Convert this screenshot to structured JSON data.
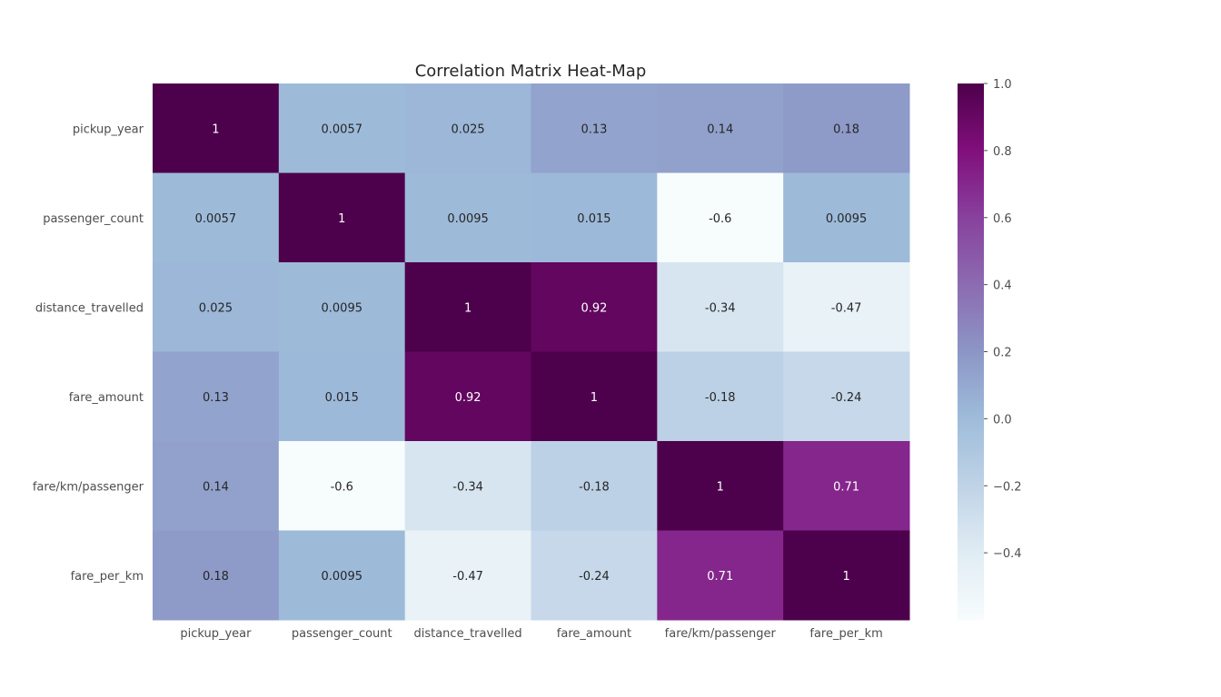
{
  "chart_data": {
    "type": "heatmap",
    "title": "Correlation Matrix Heat-Map",
    "variables": [
      "pickup_year",
      "passenger_count",
      "distance_travelled",
      "fare_amount",
      "fare/km/passenger",
      "fare_per_km"
    ],
    "values": [
      [
        1,
        0.0057,
        0.025,
        0.13,
        0.14,
        0.18
      ],
      [
        0.0057,
        1,
        0.0095,
        0.015,
        -0.6,
        0.0095
      ],
      [
        0.025,
        0.0095,
        1,
        0.92,
        -0.34,
        -0.47
      ],
      [
        0.13,
        0.015,
        0.92,
        1,
        -0.18,
        -0.24
      ],
      [
        0.14,
        -0.6,
        -0.34,
        -0.18,
        1,
        0.71
      ],
      [
        0.18,
        0.0095,
        -0.47,
        -0.24,
        0.71,
        1
      ]
    ],
    "labels": [
      [
        "1",
        "0.0057",
        "0.025",
        "0.13",
        "0.14",
        "0.18"
      ],
      [
        "0.0057",
        "1",
        "0.0095",
        "0.015",
        "-0.6",
        "0.0095"
      ],
      [
        "0.025",
        "0.0095",
        "1",
        "0.92",
        "-0.34",
        "-0.47"
      ],
      [
        "0.13",
        "0.015",
        "0.92",
        "1",
        "-0.18",
        "-0.24"
      ],
      [
        "0.14",
        "-0.6",
        "-0.34",
        "-0.18",
        "1",
        "0.71"
      ],
      [
        "0.18",
        "0.0095",
        "-0.47",
        "-0.24",
        "0.71",
        "1"
      ]
    ],
    "colormap": "BuPu",
    "vmin": -0.6,
    "vmax": 1.0,
    "colorbar": {
      "ticks": [
        1.0,
        0.8,
        0.6,
        0.4,
        0.2,
        0.0,
        -0.2,
        -0.4
      ],
      "tick_labels": [
        "1.0",
        "0.8",
        "0.6",
        "0.4",
        "0.2",
        "0.0",
        "−0.2",
        "−0.4"
      ]
    },
    "colors": {
      "stops": [
        "#f7fcfd",
        "#e0ecf4",
        "#bfd3e6",
        "#9ebcda",
        "#8c96c6",
        "#8c6bb1",
        "#88419d",
        "#810f7c",
        "#4d004b"
      ]
    }
  }
}
